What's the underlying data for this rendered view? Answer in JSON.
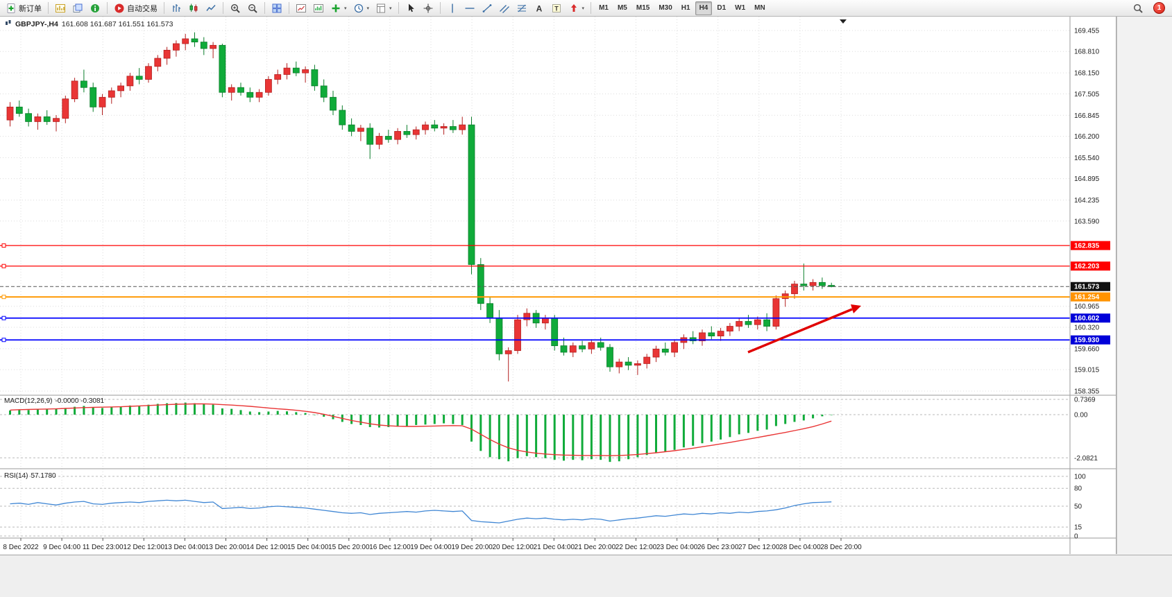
{
  "toolbar": {
    "groups": [
      {
        "items": [
          {
            "name": "new-order-button",
            "icon": "new-order",
            "label": "新订单"
          }
        ]
      },
      {
        "items": [
          {
            "name": "new-chart-button",
            "icon": "new-chart"
          },
          {
            "name": "profiles-button",
            "icon": "profiles"
          },
          {
            "name": "data-window-button",
            "icon": "data-window"
          }
        ]
      },
      {
        "items": [
          {
            "name": "autotrading-button",
            "icon": "autotrading",
            "label": "自动交易"
          }
        ]
      },
      {
        "items": [
          {
            "name": "bar-chart-button",
            "icon": "bar-chart"
          },
          {
            "name": "candlestick-chart-button",
            "icon": "candlestick"
          },
          {
            "name": "line-chart-button",
            "icon": "line-chart"
          }
        ]
      },
      {
        "items": [
          {
            "name": "zoom-in-button",
            "icon": "zoom-in"
          },
          {
            "name": "zoom-out-button",
            "icon": "zoom-out"
          }
        ]
      },
      {
        "items": [
          {
            "name": "tile-windows-button",
            "icon": "tile-windows"
          }
        ]
      },
      {
        "items": [
          {
            "name": "indicators-button",
            "icon": "indicators"
          },
          {
            "name": "objects-button",
            "icon": "objects"
          },
          {
            "name": "add-indicator-button",
            "icon": "add-indicator",
            "dropdown": true
          },
          {
            "name": "periods-button",
            "icon": "periods",
            "dropdown": true
          },
          {
            "name": "templates-button",
            "icon": "templates",
            "dropdown": true
          }
        ]
      },
      {
        "items": [
          {
            "name": "cursor-button",
            "icon": "cursor"
          },
          {
            "name": "crosshair-button",
            "icon": "crosshair"
          }
        ]
      },
      {
        "items": [
          {
            "name": "vertical-line-button",
            "icon": "vertical-line"
          },
          {
            "name": "horizontal-line-button",
            "icon": "horizontal-line"
          },
          {
            "name": "trendline-button",
            "icon": "trendline"
          },
          {
            "name": "channel-button",
            "icon": "channel"
          },
          {
            "name": "fibonacci-button",
            "icon": "fibonacci"
          },
          {
            "name": "text-button",
            "icon": "text"
          },
          {
            "name": "text-label-button",
            "icon": "text-label"
          },
          {
            "name": "arrows-button",
            "icon": "arrows",
            "dropdown": true
          }
        ]
      },
      {
        "items": [
          {
            "name": "timeframe-m1-button",
            "label": "M1",
            "tf": true
          },
          {
            "name": "timeframe-m5-button",
            "label": "M5",
            "tf": true
          },
          {
            "name": "timeframe-m15-button",
            "label": "M15",
            "tf": true
          },
          {
            "name": "timeframe-m30-button",
            "label": "M30",
            "tf": true
          },
          {
            "name": "timeframe-h1-button",
            "label": "H1",
            "tf": true
          },
          {
            "name": "timeframe-h4-button",
            "label": "H4",
            "tf": true,
            "active": true
          },
          {
            "name": "timeframe-d1-button",
            "label": "D1",
            "tf": true
          },
          {
            "name": "timeframe-w1-button",
            "label": "W1",
            "tf": true
          },
          {
            "name": "timeframe-mn-button",
            "label": "MN",
            "tf": true
          }
        ]
      }
    ],
    "right_items": [
      {
        "name": "search-button",
        "icon": "search"
      },
      {
        "name": "notifications-badge",
        "label": "1",
        "badge": true
      }
    ]
  },
  "chart": {
    "title": {
      "symbol_period": "GBPJPY-,H4",
      "ohlc": "161.608 161.687 161.551 161.573"
    },
    "macd": {
      "label": "MACD(12,26,9)",
      "values": "-0.0000 -0.3081"
    },
    "rsi": {
      "label": "RSI(14)",
      "value": "57.1780"
    }
  },
  "chart_data": [
    {
      "type": "candlestick",
      "title": "GBPJPY-,H4",
      "timeframe": "H4",
      "ylim": [
        158.355,
        169.455
      ],
      "y_ticks": [
        169.455,
        168.81,
        168.15,
        167.505,
        166.845,
        166.2,
        165.54,
        164.895,
        164.235,
        163.59,
        160.965,
        160.32,
        159.66,
        159.015,
        158.355
      ],
      "x_labels": [
        "8 Dec 2022",
        "9 Dec 04:00",
        "11 Dec 23:00",
        "12 Dec 12:00",
        "13 Dec 04:00",
        "13 Dec 20:00",
        "14 Dec 12:00",
        "15 Dec 04:00",
        "15 Dec 20:00",
        "16 Dec 12:00",
        "19 Dec 04:00",
        "19 Dec 20:00",
        "20 Dec 12:00",
        "21 Dec 04:00",
        "21 Dec 20:00",
        "22 Dec 12:00",
        "23 Dec 04:00",
        "26 Dec 23:00",
        "27 Dec 12:00",
        "28 Dec 04:00",
        "28 Dec 20:00"
      ],
      "colors": {
        "bull": "#e93535",
        "bull_edge": "#b31f1f",
        "bear": "#10ab3a",
        "bear_edge": "#0a7e2a",
        "grid": "#dcdcdc"
      },
      "hlines": [
        {
          "price": 162.835,
          "label": "162.835",
          "color": "#ff0000",
          "label_bg": "#ff0000",
          "width": 1.2,
          "style": "solid",
          "handle": true
        },
        {
          "price": 162.203,
          "label": "162.203",
          "color": "#ff0000",
          "label_bg": "#ff0000",
          "width": 1.2,
          "style": "solid",
          "handle": true
        },
        {
          "price": 161.573,
          "label": "161.573",
          "color": "#555555",
          "label_bg": "#111111",
          "width": 1,
          "style": "dashed",
          "handle": false
        },
        {
          "price": 161.254,
          "label": "161.254",
          "color": "#ff9800",
          "label_bg": "#ff9300",
          "width": 2,
          "style": "solid",
          "handle": true
        },
        {
          "price": 160.602,
          "label": "160.602",
          "color": "#0000ff",
          "label_bg": "#0000d9",
          "width": 1.8,
          "style": "solid",
          "handle": true
        },
        {
          "price": 159.93,
          "label": "159.930",
          "color": "#0000ff",
          "label_bg": "#0000d9",
          "width": 1.8,
          "style": "solid",
          "handle": true
        }
      ],
      "annotations": [
        {
          "type": "arrow",
          "color": "#e00000"
        }
      ],
      "ohlc": [
        [
          166.7,
          167.25,
          166.5,
          167.1
        ],
        [
          167.1,
          167.3,
          166.8,
          166.9
        ],
        [
          166.9,
          167.05,
          166.5,
          166.65
        ],
        [
          166.65,
          166.9,
          166.4,
          166.8
        ],
        [
          166.8,
          167.0,
          166.55,
          166.65
        ],
        [
          166.65,
          166.85,
          166.35,
          166.75
        ],
        [
          166.75,
          167.45,
          166.6,
          167.35
        ],
        [
          167.35,
          168.0,
          167.25,
          167.9
        ],
        [
          167.9,
          168.25,
          167.55,
          167.7
        ],
        [
          167.7,
          167.85,
          166.95,
          167.1
        ],
        [
          167.1,
          167.5,
          166.85,
          167.4
        ],
        [
          167.4,
          167.7,
          167.2,
          167.6
        ],
        [
          167.6,
          167.85,
          167.4,
          167.75
        ],
        [
          167.75,
          168.15,
          167.6,
          168.05
        ],
        [
          168.05,
          168.3,
          167.8,
          167.95
        ],
        [
          167.95,
          168.45,
          167.85,
          168.35
        ],
        [
          168.35,
          168.7,
          168.2,
          168.6
        ],
        [
          168.6,
          168.95,
          168.4,
          168.85
        ],
        [
          168.85,
          169.15,
          168.65,
          169.05
        ],
        [
          169.05,
          169.35,
          168.85,
          169.2
        ],
        [
          169.2,
          169.4,
          168.95,
          169.1
        ],
        [
          169.1,
          169.25,
          168.7,
          168.9
        ],
        [
          168.9,
          169.1,
          168.6,
          169.0
        ],
        [
          169.0,
          169.05,
          167.4,
          167.55
        ],
        [
          167.55,
          167.8,
          167.3,
          167.7
        ],
        [
          167.7,
          167.85,
          167.45,
          167.55
        ],
        [
          167.55,
          167.7,
          167.25,
          167.4
        ],
        [
          167.4,
          167.65,
          167.25,
          167.55
        ],
        [
          167.55,
          168.05,
          167.45,
          167.95
        ],
        [
          167.95,
          168.25,
          167.8,
          168.1
        ],
        [
          168.1,
          168.45,
          167.95,
          168.3
        ],
        [
          168.3,
          168.5,
          168.05,
          168.15
        ],
        [
          168.15,
          168.35,
          167.85,
          168.25
        ],
        [
          168.25,
          168.4,
          167.6,
          167.75
        ],
        [
          167.75,
          167.95,
          167.25,
          167.4
        ],
        [
          167.4,
          167.6,
          166.85,
          167.0
        ],
        [
          167.0,
          167.15,
          166.4,
          166.55
        ],
        [
          166.55,
          166.75,
          166.2,
          166.35
        ],
        [
          166.35,
          166.55,
          166.05,
          166.45
        ],
        [
          166.45,
          166.6,
          165.5,
          165.95
        ],
        [
          165.95,
          166.3,
          165.8,
          166.2
        ],
        [
          166.2,
          166.4,
          166.0,
          166.1
        ],
        [
          166.1,
          166.45,
          165.95,
          166.35
        ],
        [
          166.35,
          166.55,
          166.15,
          166.25
        ],
        [
          166.25,
          166.5,
          166.1,
          166.4
        ],
        [
          166.4,
          166.65,
          166.25,
          166.55
        ],
        [
          166.55,
          166.7,
          166.35,
          166.45
        ],
        [
          166.45,
          166.6,
          166.25,
          166.5
        ],
        [
          166.5,
          166.7,
          166.3,
          166.4
        ],
        [
          166.4,
          166.8,
          166.25,
          166.55
        ],
        [
          166.55,
          166.8,
          161.95,
          162.25
        ],
        [
          162.25,
          162.45,
          160.85,
          161.05
        ],
        [
          161.05,
          161.25,
          160.45,
          160.6
        ],
        [
          160.6,
          160.85,
          159.3,
          159.5
        ],
        [
          159.5,
          159.7,
          158.65,
          159.6
        ],
        [
          159.6,
          160.7,
          159.5,
          160.55
        ],
        [
          160.55,
          160.9,
          160.35,
          160.75
        ],
        [
          160.75,
          160.85,
          160.3,
          160.45
        ],
        [
          160.45,
          160.7,
          160.25,
          160.6
        ],
        [
          160.6,
          160.7,
          159.6,
          159.75
        ],
        [
          159.75,
          160.0,
          159.45,
          159.55
        ],
        [
          159.55,
          159.85,
          159.4,
          159.75
        ],
        [
          159.75,
          159.9,
          159.55,
          159.65
        ],
        [
          159.65,
          159.95,
          159.5,
          159.85
        ],
        [
          159.85,
          160.0,
          159.6,
          159.7
        ],
        [
          159.7,
          159.8,
          158.95,
          159.1
        ],
        [
          159.1,
          159.35,
          158.9,
          159.25
        ],
        [
          159.25,
          159.4,
          159.0,
          159.15
        ],
        [
          159.15,
          159.3,
          158.85,
          159.2
        ],
        [
          159.2,
          159.5,
          159.05,
          159.4
        ],
        [
          159.4,
          159.75,
          159.25,
          159.65
        ],
        [
          159.65,
          159.85,
          159.45,
          159.55
        ],
        [
          159.55,
          159.95,
          159.4,
          159.85
        ],
        [
          159.85,
          160.1,
          159.65,
          160.0
        ],
        [
          160.0,
          160.2,
          159.8,
          159.9
        ],
        [
          159.9,
          160.25,
          159.75,
          160.15
        ],
        [
          160.15,
          160.35,
          159.95,
          160.05
        ],
        [
          160.05,
          160.3,
          159.9,
          160.2
        ],
        [
          160.2,
          160.45,
          160.05,
          160.35
        ],
        [
          160.35,
          160.6,
          160.2,
          160.5
        ],
        [
          160.5,
          160.7,
          160.3,
          160.4
        ],
        [
          160.4,
          160.65,
          160.25,
          160.55
        ],
        [
          160.55,
          160.75,
          160.2,
          160.35
        ],
        [
          160.35,
          161.3,
          160.25,
          161.2
        ],
        [
          161.2,
          161.45,
          160.95,
          161.35
        ],
        [
          161.35,
          161.75,
          161.2,
          161.65
        ],
        [
          161.65,
          162.28,
          161.45,
          161.6
        ],
        [
          161.6,
          161.8,
          161.45,
          161.7
        ],
        [
          161.7,
          161.85,
          161.5,
          161.6
        ],
        [
          161.61,
          161.69,
          161.55,
          161.57
        ]
      ]
    },
    {
      "type": "bar",
      "title": "MACD(12,26,9)",
      "values_display": "-0.0000 -0.3081",
      "y_ticks": [
        "0.7369",
        "0.00",
        "-2.0821"
      ],
      "colors": {
        "histogram": "#10ab3a",
        "signal": "#e93535"
      },
      "histogram": [
        0.2,
        0.25,
        0.22,
        0.28,
        0.25,
        0.3,
        0.32,
        0.38,
        0.42,
        0.35,
        0.32,
        0.36,
        0.4,
        0.44,
        0.42,
        0.48,
        0.52,
        0.55,
        0.56,
        0.58,
        0.55,
        0.5,
        0.48,
        0.3,
        0.28,
        0.22,
        0.15,
        0.12,
        0.15,
        0.18,
        0.16,
        0.12,
        0.08,
        0.0,
        -0.1,
        -0.22,
        -0.35,
        -0.45,
        -0.5,
        -0.6,
        -0.62,
        -0.6,
        -0.58,
        -0.55,
        -0.5,
        -0.48,
        -0.45,
        -0.42,
        -0.45,
        -0.5,
        -1.3,
        -1.75,
        -2.05,
        -2.15,
        -2.25,
        -2.1,
        -2.0,
        -2.05,
        -2.1,
        -2.18,
        -2.22,
        -2.18,
        -2.2,
        -2.15,
        -2.18,
        -2.28,
        -2.25,
        -2.15,
        -2.05,
        -1.95,
        -1.85,
        -1.8,
        -1.7,
        -1.58,
        -1.5,
        -1.38,
        -1.3,
        -1.2,
        -1.08,
        -0.95,
        -0.88,
        -0.78,
        -0.72,
        -0.55,
        -0.45,
        -0.35,
        -0.28,
        -0.18,
        -0.08,
        0.0
      ],
      "signal": [
        0.22,
        0.24,
        0.25,
        0.26,
        0.27,
        0.28,
        0.3,
        0.32,
        0.34,
        0.35,
        0.36,
        0.37,
        0.38,
        0.4,
        0.42,
        0.44,
        0.46,
        0.48,
        0.5,
        0.51,
        0.52,
        0.52,
        0.51,
        0.48,
        0.46,
        0.43,
        0.4,
        0.36,
        0.32,
        0.28,
        0.25,
        0.21,
        0.16,
        0.1,
        0.02,
        -0.08,
        -0.18,
        -0.28,
        -0.36,
        -0.44,
        -0.5,
        -0.54,
        -0.56,
        -0.57,
        -0.57,
        -0.56,
        -0.55,
        -0.54,
        -0.53,
        -0.54,
        -0.7,
        -0.95,
        -1.2,
        -1.42,
        -1.6,
        -1.72,
        -1.8,
        -1.86,
        -1.9,
        -1.93,
        -1.95,
        -1.96,
        -1.97,
        -1.97,
        -1.97,
        -1.98,
        -1.97,
        -1.95,
        -1.92,
        -1.88,
        -1.84,
        -1.79,
        -1.74,
        -1.68,
        -1.62,
        -1.55,
        -1.48,
        -1.41,
        -1.34,
        -1.26,
        -1.18,
        -1.1,
        -1.02,
        -0.94,
        -0.86,
        -0.77,
        -0.68,
        -0.58,
        -0.45,
        -0.31
      ]
    },
    {
      "type": "line",
      "title": "RSI(14)",
      "value_display": "57.1780",
      "ylim": [
        0,
        100
      ],
      "y_ticks": [
        100,
        80,
        50,
        15,
        0
      ],
      "levels": [
        80,
        50,
        15
      ],
      "colors": {
        "line": "#3f86d4"
      },
      "values": [
        54,
        55,
        53,
        56,
        54,
        52,
        55,
        57,
        58,
        54,
        53,
        55,
        56,
        57,
        56,
        58,
        59,
        60,
        59,
        60,
        58,
        56,
        57,
        46,
        47,
        48,
        46,
        47,
        49,
        50,
        49,
        48,
        47,
        45,
        43,
        41,
        39,
        38,
        39,
        36,
        38,
        39,
        40,
        41,
        40,
        42,
        43,
        42,
        41,
        42,
        26,
        24,
        23,
        22,
        25,
        28,
        30,
        29,
        30,
        28,
        27,
        28,
        27,
        29,
        28,
        25,
        27,
        29,
        30,
        32,
        34,
        33,
        35,
        37,
        36,
        38,
        37,
        39,
        38,
        40,
        39,
        41,
        42,
        44,
        47,
        51,
        54,
        56,
        56.5,
        57.18
      ]
    }
  ]
}
